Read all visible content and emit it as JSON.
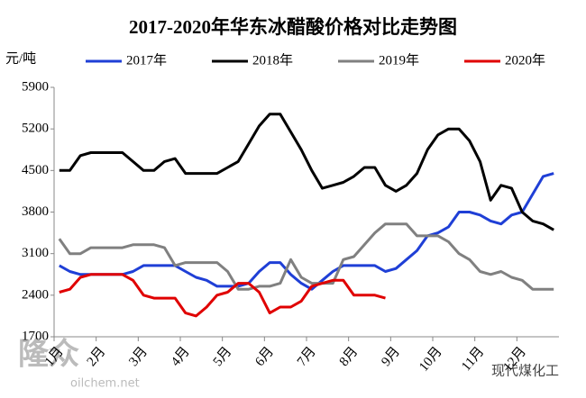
{
  "chart_data": {
    "type": "line",
    "title": "2017-2020年华东冰醋酸价格对比走势图",
    "y_label": "元/吨",
    "watermarks": [
      "隆众",
      "oilchem.net",
      "现代煤化工"
    ],
    "categories": [
      "1月",
      null,
      null,
      null,
      "2月",
      null,
      null,
      null,
      "3月",
      null,
      null,
      null,
      "4月",
      null,
      null,
      null,
      "5月",
      null,
      null,
      null,
      "6月",
      null,
      null,
      null,
      "7月",
      null,
      null,
      null,
      "8月",
      null,
      null,
      null,
      "9月",
      null,
      null,
      null,
      "10月",
      null,
      null,
      null,
      "11月",
      null,
      null,
      null,
      "12月",
      null,
      null,
      null
    ],
    "ylim": [
      1700,
      5900
    ],
    "yticks": [
      1700,
      2400,
      3100,
      3800,
      4500,
      5200,
      5900
    ],
    "legend": "top",
    "series": [
      {
        "name": "2017年",
        "color": "#1f3fd6",
        "values": [
          2900,
          2800,
          2750,
          2750,
          2750,
          2750,
          2750,
          2800,
          2900,
          2900,
          2900,
          2900,
          2800,
          2700,
          2650,
          2550,
          2550,
          2550,
          2600,
          2800,
          2950,
          2950,
          2750,
          2600,
          2500,
          2650,
          2800,
          2900,
          2900,
          2900,
          2900,
          2800,
          2850,
          3000,
          3150,
          3400,
          3450,
          3550,
          3800,
          3800,
          3750,
          3650,
          3600,
          3750,
          3800,
          4100,
          4400,
          4450
        ]
      },
      {
        "name": "2018年",
        "color": "#000000",
        "values": [
          4500,
          4500,
          4750,
          4800,
          4800,
          4800,
          4800,
          4650,
          4500,
          4500,
          4650,
          4700,
          4450,
          4450,
          4450,
          4450,
          4550,
          4650,
          4950,
          5250,
          5450,
          5450,
          5150,
          4850,
          4500,
          4200,
          4250,
          4300,
          4400,
          4550,
          4550,
          4250,
          4150,
          4250,
          4450,
          4850,
          5100,
          5200,
          5200,
          5000,
          4650,
          4000,
          4250,
          4200,
          3800,
          3650,
          3600,
          3500
        ]
      },
      {
        "name": "2019年",
        "color": "#808080",
        "values": [
          3350,
          3100,
          3100,
          3200,
          3200,
          3200,
          3200,
          3250,
          3250,
          3250,
          3200,
          2900,
          2950,
          2950,
          2950,
          2950,
          2800,
          2500,
          2500,
          2550,
          2550,
          2600,
          3000,
          2700,
          2600,
          2600,
          2600,
          3000,
          3050,
          3250,
          3450,
          3600,
          3600,
          3600,
          3400,
          3400,
          3400,
          3300,
          3100,
          3000,
          2800,
          2750,
          2800,
          2700,
          2650,
          2500,
          2500,
          2500
        ]
      },
      {
        "name": "2020年",
        "color": "#e00000",
        "values": [
          2450,
          2500,
          2700,
          2750,
          2750,
          2750,
          2750,
          2650,
          2400,
          2350,
          2350,
          2350,
          2100,
          2050,
          2200,
          2400,
          2450,
          2600,
          2600,
          2450,
          2100,
          2200,
          2200,
          2300,
          2550,
          2600,
          2650,
          2650,
          2400,
          2400,
          2400,
          2350,
          null,
          null,
          null,
          null,
          null,
          null,
          null,
          null,
          null,
          null,
          null,
          null,
          null,
          null,
          null,
          null
        ]
      }
    ]
  }
}
